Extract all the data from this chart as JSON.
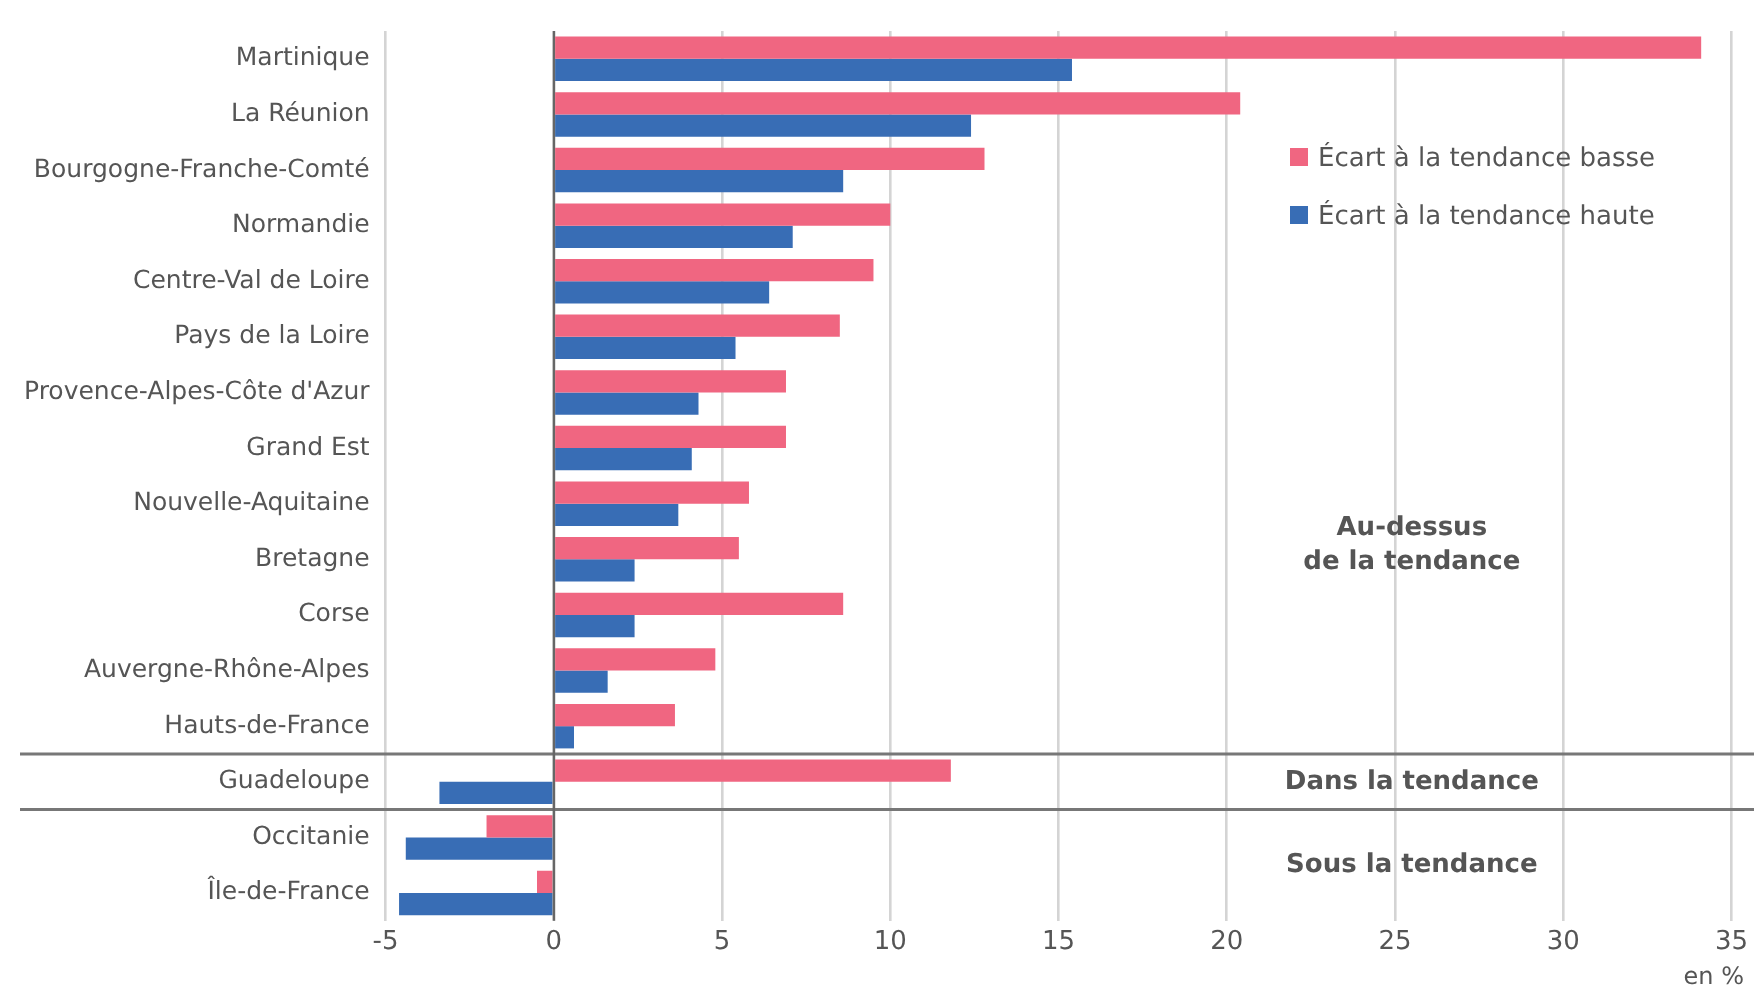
{
  "chart_data": {
    "type": "bar",
    "orientation": "horizontal",
    "categories": [
      "Martinique",
      "La Réunion",
      "Bourgogne-Franche-Comté",
      "Normandie",
      "Centre-Val de Loire",
      "Pays de la Loire",
      "Provence-Alpes-Côte d'Azur",
      "Grand Est",
      "Nouvelle-Aquitaine",
      "Bretagne",
      "Corse",
      "Auvergne-Rhône-Alpes",
      "Hauts-de-France",
      "Guadeloupe",
      "Occitanie",
      "Île-de-France"
    ],
    "series": [
      {
        "name": "Écart à la tendance basse",
        "color": "#f06681",
        "values": [
          34.1,
          20.4,
          12.8,
          10.0,
          9.5,
          8.5,
          6.9,
          6.9,
          5.8,
          5.5,
          8.6,
          4.8,
          3.6,
          11.8,
          -2.0,
          -0.5
        ]
      },
      {
        "name": "Écart à la tendance haute",
        "color": "#386db5",
        "values": [
          15.4,
          12.4,
          8.6,
          7.1,
          6.4,
          5.4,
          4.3,
          4.1,
          3.7,
          2.4,
          2.4,
          1.6,
          0.6,
          -3.4,
          -4.4,
          -4.6
        ]
      }
    ],
    "xlabel": "en %",
    "xlim": [
      -5,
      35
    ],
    "xticks": [
      -5,
      0,
      5,
      10,
      15,
      20,
      25,
      30,
      35
    ],
    "grid": "x",
    "legend": "top right",
    "annotations": [
      "Au-dessus\nde la tendance",
      "Dans la tendance",
      "Sous la tendance"
    ]
  }
}
